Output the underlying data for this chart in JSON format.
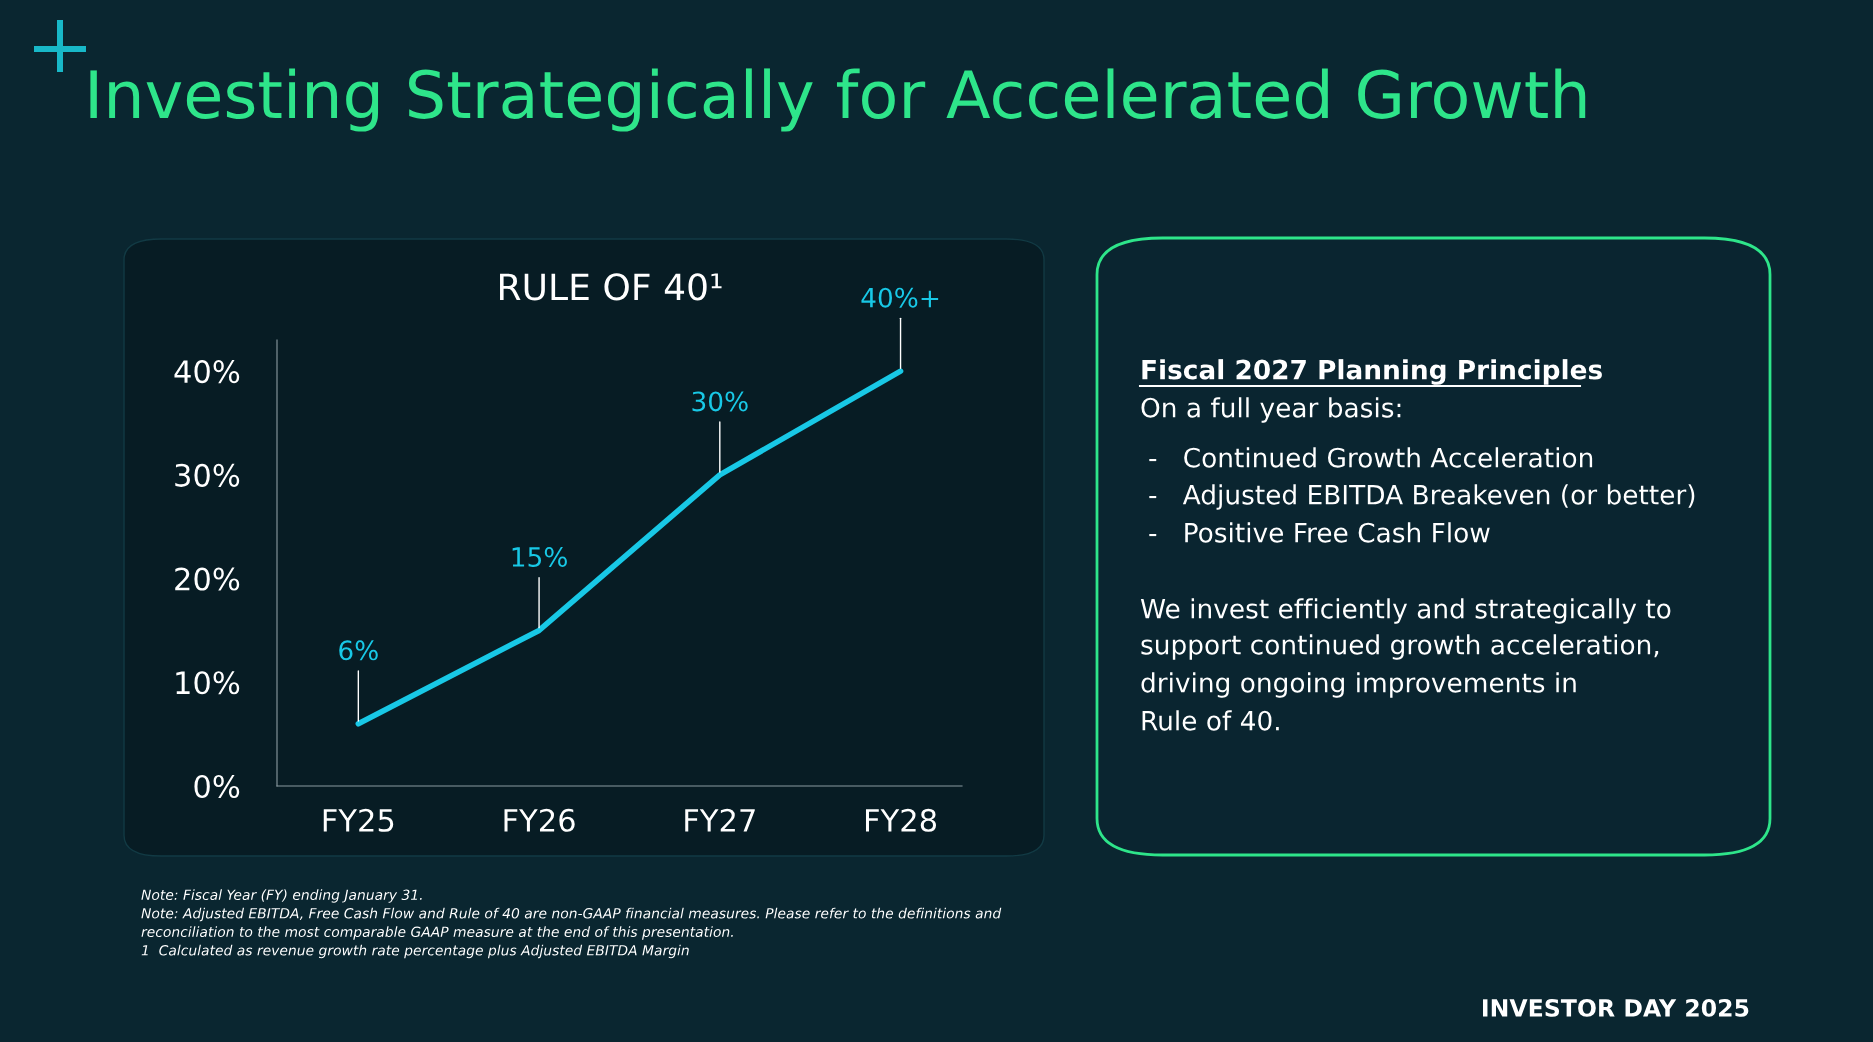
{
  "chart_data": [
    {
      "type": "line",
      "title": "Investing Strategically for Accelerated Growth",
      "subtitle": "RULE OF 40¹",
      "categories": [
        "FY25",
        "FY26",
        "FY27",
        "FY28"
      ],
      "series": [
        {
          "color": "#18c8e6",
          "values": [
            6,
            15,
            30,
            40
          ],
          "value_labels": [
            "6%",
            "15%",
            "30%",
            "40%+"
          ]
        }
      ],
      "ylim": [
        0,
        43
      ],
      "yticks": [
        {
          "value": 0,
          "label": "0%"
        },
        {
          "value": 10,
          "label": "10%"
        },
        {
          "value": 20,
          "label": "20%"
        },
        {
          "value": 30,
          "label": "30%"
        },
        {
          "value": 40,
          "label": "40%"
        }
      ],
      "grid": false,
      "marker": "none",
      "line_style": "solid",
      "annotations": [
        "Note: Fiscal Year (FY) ending January 31.",
        "Note: Adjusted EBITDA, Free Cash Flow and Rule of 40 are non-GAAP financial measures. Please refer to the definitions and",
        "reconciliation to the most comparable GAAP measure at the end of this presentation.",
        "1  Calculated as revenue growth rate percentage plus Adjusted EBITDA Margin",
        "INVESTOR DAY 2025"
      ]
    },
    {
      "type": "other",
      "title": "Fiscal 2027 Planning Principles",
      "annotations": [
        "On a full year basis:",
        "-   Continued Growth Acceleration",
        "-   Adjusted EBITDA Breakeven (or better)",
        "-   Positive Free Cash Flow",
        "We invest efficiently and strategically to",
        "support continued growth acceleration,",
        "driving ongoing improvements in",
        "Rule of 40."
      ]
    }
  ]
}
